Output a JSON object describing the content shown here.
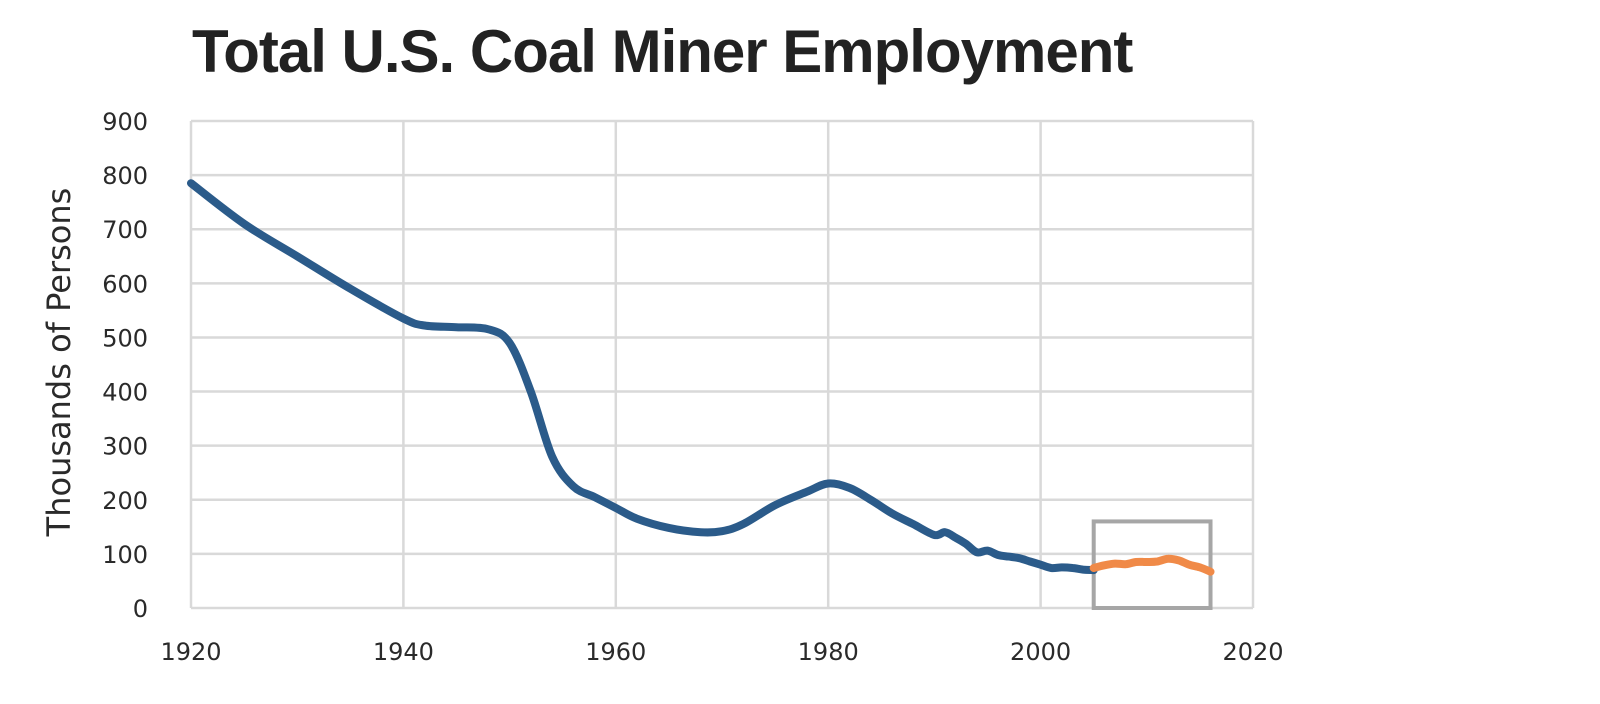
{
  "chart_data": {
    "type": "line",
    "title": "Total U.S. Coal Miner Employment",
    "xlabel": "",
    "ylabel": "Thousands  of Persons",
    "xlim": [
      1920,
      2020
    ],
    "ylim": [
      0,
      900
    ],
    "x_ticks": [
      "1920",
      "1940",
      "1960",
      "1980",
      "2000",
      "2020"
    ],
    "y_ticks": [
      "0",
      "100",
      "200",
      "300",
      "400",
      "500",
      "600",
      "700",
      "800",
      "900"
    ],
    "grid": true,
    "legend": "none",
    "series": [
      {
        "color": "#2b5b8a",
        "x": [
          1920,
          1925,
          1930,
          1935,
          1940,
          1942,
          1945,
          1948,
          1950,
          1952,
          1954,
          1956,
          1958,
          1960,
          1962,
          1965,
          1968,
          1970,
          1972,
          1975,
          1978,
          1980,
          1982,
          1984,
          1986,
          1988,
          1990,
          1991,
          1992,
          1993,
          1994,
          1995,
          1996,
          1997,
          1998,
          1999,
          2000,
          2001,
          2002,
          2003,
          2004,
          2005
        ],
        "y": [
          785,
          710,
          650,
          590,
          535,
          522,
          519,
          515,
          490,
          400,
          280,
          225,
          205,
          185,
          165,
          148,
          140,
          142,
          155,
          190,
          215,
          230,
          222,
          200,
          175,
          155,
          135,
          140,
          130,
          118,
          103,
          106,
          98,
          95,
          92,
          86,
          80,
          74,
          75,
          74,
          71,
          70
        ]
      },
      {
        "color": "#f08a48",
        "x": [
          2005,
          2006,
          2007,
          2008,
          2009,
          2010,
          2011,
          2012,
          2013,
          2014,
          2015,
          2016
        ],
        "y": [
          74,
          79,
          82,
          81,
          85,
          85,
          86,
          91,
          88,
          80,
          75,
          67
        ]
      }
    ],
    "annotations": [
      {
        "type": "box",
        "x_range": [
          2005,
          2016
        ],
        "y_range": [
          0,
          160
        ],
        "color": "#a6a6a6"
      }
    ]
  }
}
